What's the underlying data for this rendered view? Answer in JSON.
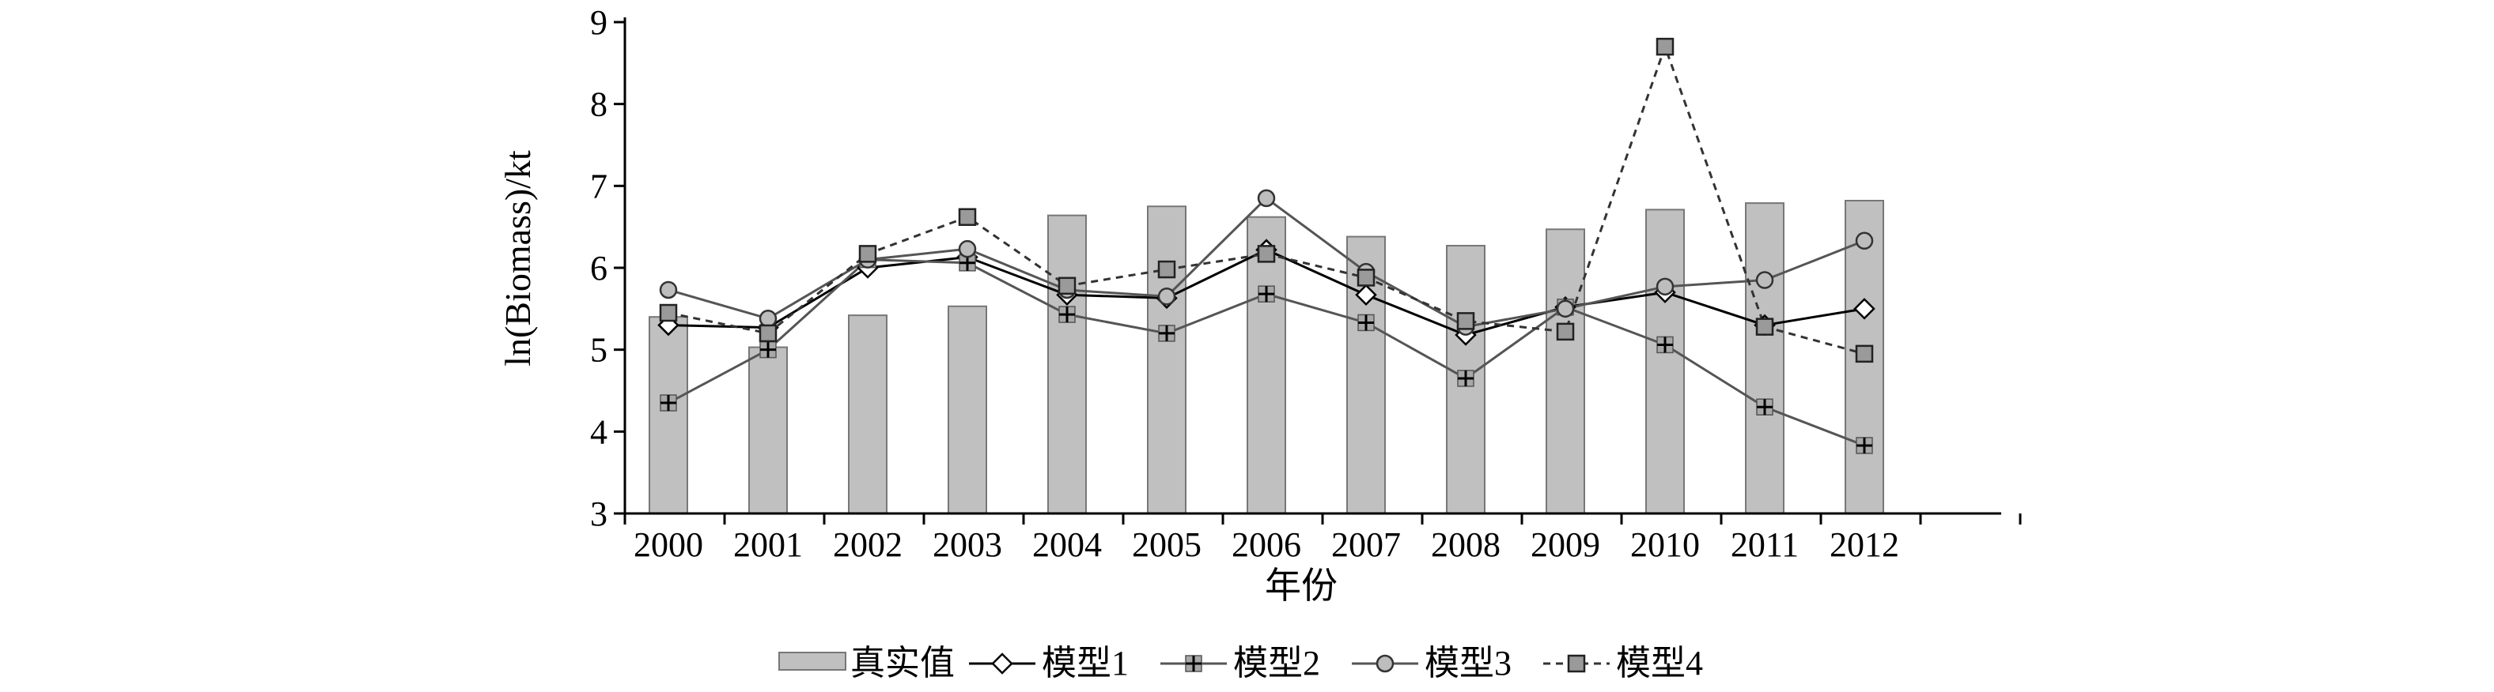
{
  "chart_data": {
    "type": "bar+line",
    "title": "",
    "xlabel": "年份",
    "ylabel": "ln(Biomass)/kt",
    "ylim": [
      3,
      9
    ],
    "yticks": [
      3,
      4,
      5,
      6,
      7,
      8,
      9
    ],
    "grid": false,
    "legend_position": "bottom",
    "categories": [
      "2000",
      "2001",
      "2002",
      "2003",
      "2004",
      "2005",
      "2006",
      "2007",
      "2008",
      "2009",
      "2010",
      "2011",
      "2012"
    ],
    "bars": {
      "name": "真实值",
      "color": "#c0c0c0",
      "values": [
        5.4,
        5.03,
        5.42,
        5.53,
        6.64,
        6.75,
        6.62,
        6.38,
        6.27,
        6.47,
        6.71,
        6.79,
        6.82
      ]
    },
    "series": [
      {
        "name": "模型1",
        "marker": "diamond",
        "line_style": "solid",
        "color": "#000000",
        "values": [
          5.3,
          5.27,
          6.0,
          6.13,
          5.67,
          5.63,
          6.22,
          5.67,
          5.18,
          5.52,
          5.7,
          5.3,
          5.5
        ]
      },
      {
        "name": "模型2",
        "marker": "square-plus",
        "line_style": "solid",
        "color": "#555555",
        "values": [
          4.35,
          5.0,
          6.1,
          6.06,
          5.43,
          5.2,
          5.68,
          5.33,
          4.65,
          5.52,
          5.06,
          4.3,
          3.83
        ]
      },
      {
        "name": "模型3",
        "marker": "circle",
        "line_style": "solid",
        "color": "#555555",
        "values": [
          5.73,
          5.38,
          6.1,
          6.23,
          5.73,
          5.65,
          6.85,
          5.95,
          5.28,
          5.5,
          5.77,
          5.85,
          6.33
        ]
      },
      {
        "name": "模型4",
        "marker": "square",
        "line_style": "dashed",
        "color": "#333333",
        "values": [
          5.45,
          5.2,
          6.17,
          6.62,
          5.78,
          5.98,
          6.17,
          5.88,
          5.35,
          5.22,
          8.7,
          5.28,
          4.95
        ]
      }
    ]
  }
}
